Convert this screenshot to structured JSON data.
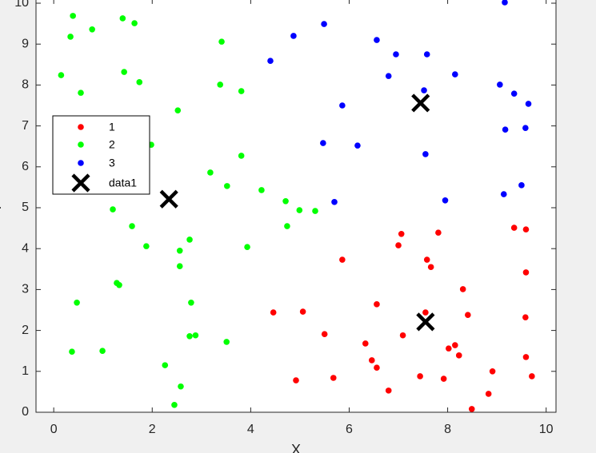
{
  "chart_data": {
    "type": "scatter",
    "xlabel": "X",
    "ylabel": "Y",
    "xlim": [
      -0.36,
      10.2
    ],
    "ylim": [
      0,
      10.1
    ],
    "xticks": [
      0,
      2,
      4,
      6,
      8,
      10
    ],
    "yticks": [
      0,
      1,
      2,
      3,
      4,
      5,
      6,
      7,
      8,
      9,
      10
    ],
    "legend": "upper-left",
    "series": [
      {
        "name": "1",
        "color": "#ff0000",
        "marker": "dot",
        "x": [
          7.81,
          7.06,
          7.0,
          5.86,
          7.58,
          7.66,
          9.35,
          9.59,
          9.59,
          8.31,
          8.41,
          6.56,
          4.46,
          5.06,
          7.55,
          9.58,
          5.5,
          7.09,
          6.33,
          8.02,
          8.15,
          8.23,
          6.46,
          6.56,
          9.59,
          8.91,
          4.92,
          5.68,
          7.44,
          7.92,
          9.71,
          6.8,
          8.83,
          8.49
        ],
        "values": [
          4.39,
          4.36,
          4.08,
          3.73,
          3.73,
          3.55,
          4.51,
          4.47,
          3.42,
          3.01,
          2.38,
          2.64,
          2.44,
          2.46,
          2.44,
          2.32,
          1.91,
          1.88,
          1.68,
          1.56,
          1.64,
          1.39,
          1.27,
          1.09,
          1.35,
          1.0,
          0.78,
          0.84,
          0.88,
          0.82,
          0.88,
          0.53,
          0.45,
          0.08
        ]
      },
      {
        "name": "2",
        "color": "#00ff00",
        "marker": "dot",
        "x": [
          0.39,
          0.34,
          1.4,
          1.64,
          0.78,
          0.15,
          1.43,
          1.74,
          0.55,
          3.41,
          3.38,
          3.81,
          2.52,
          1.98,
          3.81,
          3.18,
          3.52,
          4.22,
          4.71,
          4.99,
          5.31,
          1.2,
          1.59,
          4.74,
          2.76,
          1.88,
          3.93,
          2.56,
          2.56,
          1.28,
          1.33,
          0.47,
          2.79,
          2.76,
          2.88,
          3.51,
          0.37,
          0.99,
          2.26,
          2.58,
          2.45
        ],
        "values": [
          9.69,
          9.18,
          9.63,
          9.51,
          9.36,
          8.24,
          8.32,
          8.07,
          7.81,
          9.06,
          8.01,
          7.85,
          7.38,
          6.54,
          6.27,
          5.86,
          5.53,
          5.43,
          5.16,
          4.94,
          4.92,
          4.96,
          4.55,
          4.55,
          4.22,
          4.06,
          4.04,
          3.95,
          3.57,
          3.16,
          3.11,
          2.68,
          2.68,
          1.86,
          1.88,
          1.72,
          1.48,
          1.5,
          1.15,
          0.63,
          0.18
        ]
      },
      {
        "name": "3",
        "color": "#0000ff",
        "marker": "dot",
        "x": [
          9.16,
          5.49,
          4.87,
          6.56,
          4.4,
          6.95,
          7.58,
          6.8,
          8.15,
          9.06,
          9.35,
          9.64,
          7.52,
          5.86,
          9.17,
          9.58,
          5.47,
          6.17,
          7.55,
          5.7,
          7.95,
          9.14,
          9.5
        ],
        "values": [
          10.02,
          9.49,
          9.2,
          9.1,
          8.59,
          8.75,
          8.75,
          8.22,
          8.26,
          8.01,
          7.79,
          7.54,
          7.87,
          7.5,
          6.91,
          6.95,
          6.58,
          6.52,
          6.31,
          5.14,
          5.18,
          5.33,
          5.55
        ]
      },
      {
        "name": "data1",
        "color": "#000000",
        "marker": "cross",
        "x": [
          7.45,
          2.34,
          7.55
        ],
        "values": [
          7.56,
          5.21,
          2.21
        ]
      }
    ]
  }
}
